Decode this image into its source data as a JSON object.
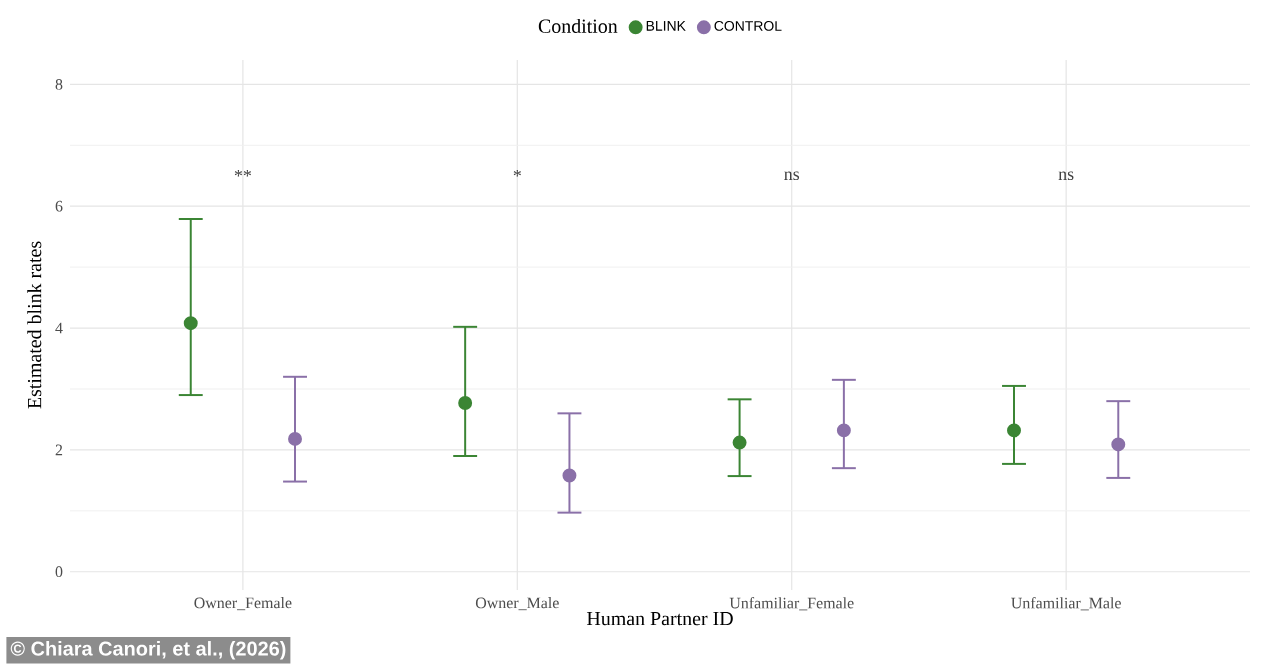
{
  "chart_data": {
    "type": "scatter",
    "xlabel": "Human Partner ID",
    "ylabel": "Estimated blink rates",
    "legend_title": "Condition",
    "legend": "top",
    "grid": true,
    "marker": "circle",
    "categories": [
      "Owner_Female",
      "Owner_Male",
      "Unfamiliar_Female",
      "Unfamiliar_Male"
    ],
    "ylim": [
      -0.3,
      8.4
    ],
    "yticks": [
      0,
      2,
      4,
      6,
      8
    ],
    "series": [
      {
        "name": "BLINK",
        "color": "#3b8534",
        "values": [
          4.08,
          2.77,
          2.12,
          2.32
        ],
        "errors": [
          [
            2.9,
            5.79
          ],
          [
            1.9,
            4.02
          ],
          [
            1.57,
            2.83
          ],
          [
            1.77,
            3.05
          ]
        ]
      },
      {
        "name": "CONTROL",
        "color": "#8a70a8",
        "values": [
          2.18,
          1.58,
          2.32,
          2.09
        ],
        "errors": [
          [
            1.48,
            3.2
          ],
          [
            0.97,
            2.6
          ],
          [
            1.7,
            3.15
          ],
          [
            1.54,
            2.8
          ]
        ]
      }
    ],
    "annotations": [
      "**",
      "*",
      "ns",
      "ns",
      "© Chiara Canori, et al., (2026)"
    ]
  }
}
